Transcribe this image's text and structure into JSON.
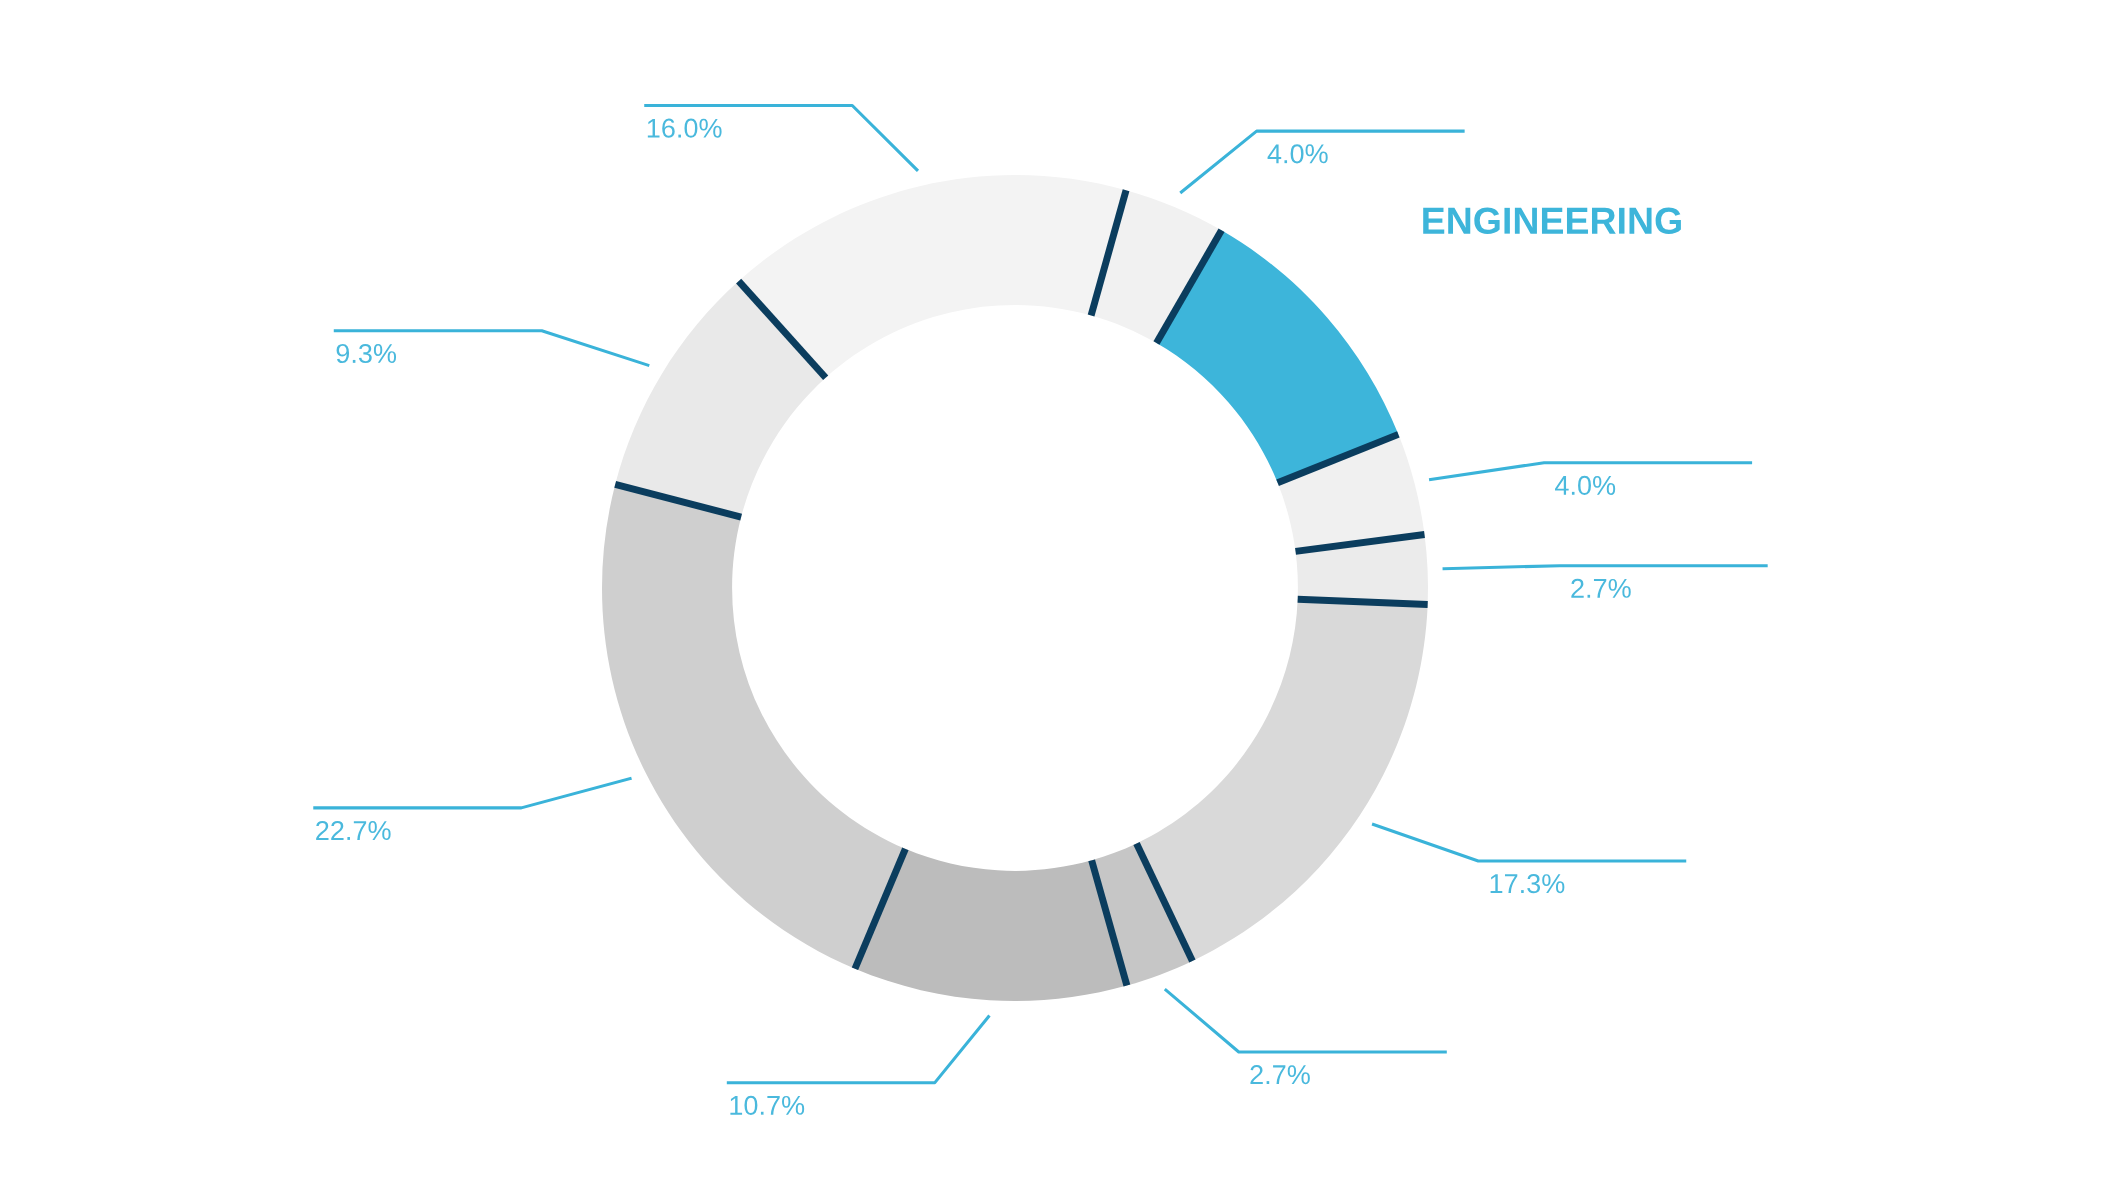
{
  "chart_data": {
    "type": "donut",
    "categories": [
      null,
      "ENGINEERING",
      null,
      null,
      null,
      null,
      null,
      null,
      null,
      null
    ],
    "values": [
      4.0,
      10.6,
      4.0,
      2.7,
      17.3,
      2.7,
      10.7,
      22.7,
      9.3,
      16.0
    ],
    "colors": [
      "#f1f1f1",
      "#3db5da",
      "#f0f0f0",
      "#ebebeb",
      "#d9d9d9",
      "#c6c6c6",
      "#bcbcbc",
      "#cfcfcf",
      "#e9e9e9",
      "#f3f3f3"
    ],
    "value_labels": [
      "4.0%",
      null,
      "4.0%",
      "2.7%",
      "17.3%",
      "2.7%",
      "10.7%",
      "22.7%",
      "9.3%",
      "16.0%"
    ]
  }
}
